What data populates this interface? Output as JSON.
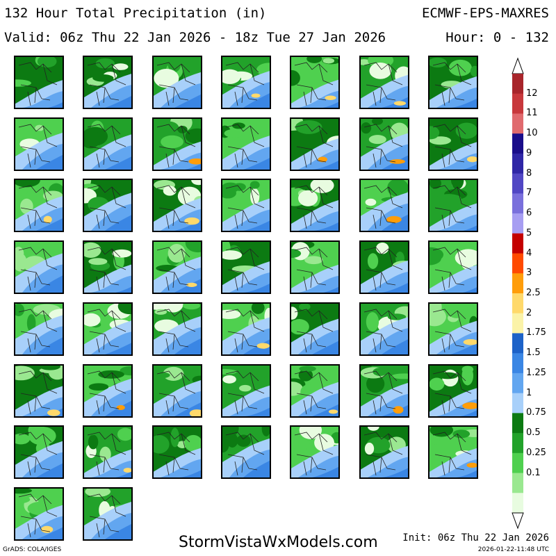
{
  "header": {
    "title": "132 Hour Total Precipitation (in)",
    "model": "ECMWF-EPS-MAXRES",
    "valid": "Valid: 06z Thu 22 Jan 2026 - 18z Tue 27 Jan 2026",
    "hours": "Hour: 0 - 132"
  },
  "panel_count": 51,
  "colorbar": {
    "levels": [
      {
        "label": "12",
        "color": "#a8252b"
      },
      {
        "label": "11",
        "color": "#c8383c"
      },
      {
        "label": "10",
        "color": "#e06a6e"
      },
      {
        "label": "9",
        "color": "#1a0d8a"
      },
      {
        "label": "8",
        "color": "#2f26a6"
      },
      {
        "label": "7",
        "color": "#5147c4"
      },
      {
        "label": "6",
        "color": "#7a70dc"
      },
      {
        "label": "5",
        "color": "#a79ef2"
      },
      {
        "label": "4",
        "color": "#c40000"
      },
      {
        "label": "3",
        "color": "#ff4a00"
      },
      {
        "label": "2.5",
        "color": "#ff9d0a"
      },
      {
        "label": "2",
        "color": "#ffd96b"
      },
      {
        "label": "1.75",
        "color": "#fbf3a8"
      },
      {
        "label": "1.5",
        "color": "#1d62c8"
      },
      {
        "label": "1.25",
        "color": "#3a86e4"
      },
      {
        "label": "1",
        "color": "#62a6f0"
      },
      {
        "label": "0.75",
        "color": "#a8d0fa"
      },
      {
        "label": "0.5",
        "color": "#0c7a12"
      },
      {
        "label": "0.25",
        "color": "#22a22a"
      },
      {
        "label": "0.1",
        "color": "#4fd04f"
      },
      {
        "label": "",
        "color": "#9ae890"
      },
      {
        "label": "",
        "color": "#e8fce0"
      }
    ]
  },
  "footer": {
    "site": "StormVistaWxModels.com",
    "init": "Init: 06z Thu 22 Jan 2026",
    "stamp": "2026-01-22-11:48 UTC",
    "grads": "GrADS: COLA/IGES"
  }
}
